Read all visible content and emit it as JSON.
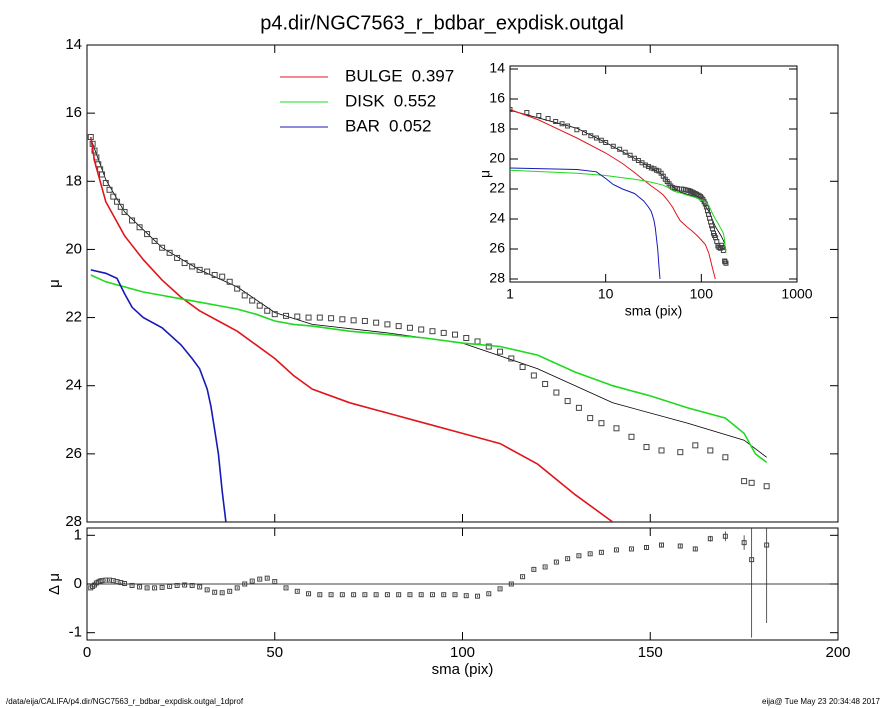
{
  "chart_data": [
    {
      "type": "line",
      "title": "p4.dir/NGC7563_r_bdbar_expdisk.outgal",
      "ylabel": "μ",
      "xlim": [
        0,
        200
      ],
      "xticks": [
        0,
        50,
        100,
        150,
        200
      ],
      "ylim": [
        14,
        28
      ],
      "yticks": [
        14,
        16,
        18,
        20,
        22,
        24,
        26,
        28
      ],
      "y_inverted": true,
      "series": [
        {
          "name": "BULGE",
          "fraction": 0.397,
          "color": "#e0161c",
          "x": [
            1,
            2,
            5,
            10,
            15,
            20,
            25,
            30,
            35,
            40,
            45,
            50,
            55,
            60,
            70,
            80,
            90,
            100,
            110,
            120,
            130,
            140
          ],
          "values": [
            16.7,
            17.4,
            18.6,
            19.6,
            20.3,
            20.9,
            21.4,
            21.8,
            22.1,
            22.4,
            22.8,
            23.2,
            23.7,
            24.1,
            24.5,
            24.8,
            25.1,
            25.4,
            25.7,
            26.3,
            27.2,
            28
          ]
        },
        {
          "name": "DISK",
          "fraction": 0.552,
          "color": "#1fd91f",
          "x": [
            1,
            5,
            10,
            15,
            20,
            25,
            30,
            35,
            40,
            45,
            50,
            55,
            60,
            70,
            80,
            90,
            100,
            110,
            120,
            130,
            140,
            150,
            160,
            170,
            175,
            178,
            181
          ],
          "values": [
            20.75,
            20.95,
            21.1,
            21.25,
            21.35,
            21.45,
            21.55,
            21.65,
            21.75,
            21.9,
            22.1,
            22.2,
            22.25,
            22.4,
            22.5,
            22.6,
            22.75,
            22.85,
            23.1,
            23.6,
            24.0,
            24.3,
            24.65,
            24.95,
            25.4,
            26.0,
            26.25
          ]
        },
        {
          "name": "BAR",
          "fraction": 0.052,
          "color": "#1818b8",
          "x": [
            1,
            5,
            8,
            10,
            12,
            15,
            20,
            25,
            28,
            30,
            32,
            33,
            34,
            35,
            36,
            37
          ],
          "values": [
            20.6,
            20.7,
            20.85,
            21.3,
            21.7,
            22.0,
            22.3,
            22.8,
            23.2,
            23.5,
            24.1,
            24.6,
            25.3,
            26.0,
            27.1,
            28.0
          ]
        }
      ],
      "model": {
        "x": [
          1,
          5,
          10,
          20,
          30,
          40,
          50,
          60,
          80,
          100,
          120,
          140,
          160,
          175,
          181
        ],
        "values": [
          16.75,
          17.95,
          18.9,
          19.95,
          20.6,
          21.1,
          21.85,
          22.2,
          22.45,
          22.75,
          23.5,
          24.5,
          25.1,
          25.6,
          26.1
        ]
      },
      "points": {
        "x": [
          1,
          1.5,
          2,
          2.5,
          3,
          3.5,
          4,
          5,
          6,
          7,
          8,
          9,
          10,
          12,
          14,
          16,
          18,
          20,
          22,
          24,
          26,
          28,
          30,
          32,
          34,
          36,
          38,
          40,
          42,
          44,
          46,
          48,
          50,
          53,
          56,
          59,
          62,
          65,
          68,
          71,
          74,
          77,
          80,
          83,
          86,
          89,
          92,
          95,
          98,
          101,
          104,
          107,
          110,
          113,
          116,
          119,
          122,
          125,
          128,
          131,
          134,
          137,
          141,
          145,
          149,
          153,
          158,
          162,
          166,
          170,
          175,
          177,
          181
        ],
        "values": [
          16.7,
          16.9,
          17.1,
          17.3,
          17.5,
          17.65,
          17.8,
          18.05,
          18.25,
          18.45,
          18.6,
          18.75,
          18.9,
          19.15,
          19.35,
          19.55,
          19.75,
          19.95,
          20.1,
          20.25,
          20.4,
          20.5,
          20.6,
          20.65,
          20.75,
          20.8,
          20.95,
          21.15,
          21.35,
          21.5,
          21.65,
          21.8,
          21.9,
          21.95,
          21.97,
          22.0,
          22.0,
          22.02,
          22.05,
          22.08,
          22.1,
          22.15,
          22.2,
          22.25,
          22.3,
          22.35,
          22.4,
          22.45,
          22.5,
          22.6,
          22.7,
          22.85,
          23.0,
          23.2,
          23.45,
          23.7,
          23.95,
          24.2,
          24.45,
          24.65,
          24.95,
          25.1,
          25.25,
          25.5,
          25.8,
          25.9,
          25.95,
          25.75,
          25.9,
          26.1,
          26.8,
          26.85,
          26.95
        ]
      }
    },
    {
      "type": "scatter",
      "xlabel": "sma (pix)",
      "ylabel": "Δ μ",
      "xlim": [
        0,
        200
      ],
      "xticks": [
        0,
        50,
        100,
        150,
        200
      ],
      "ylim": [
        -1.15,
        1.15
      ],
      "yticks": [
        -1,
        0,
        1
      ],
      "x": [
        1,
        1.5,
        2,
        2.5,
        3,
        3.5,
        4,
        5,
        6,
        7,
        8,
        9,
        10,
        12,
        14,
        16,
        18,
        20,
        22,
        24,
        26,
        28,
        30,
        32,
        34,
        36,
        38,
        40,
        42,
        44,
        46,
        48,
        50,
        53,
        56,
        59,
        62,
        65,
        68,
        71,
        74,
        77,
        80,
        83,
        86,
        89,
        92,
        95,
        98,
        101,
        104,
        107,
        110,
        113,
        116,
        119,
        122,
        125,
        128,
        131,
        134,
        137,
        141,
        145,
        149,
        153,
        158,
        162,
        166,
        170,
        175,
        177,
        181
      ],
      "values": [
        -0.08,
        -0.05,
        -0.02,
        0.02,
        0.04,
        0.06,
        0.07,
        0.08,
        0.08,
        0.07,
        0.05,
        0.03,
        0.01,
        -0.03,
        -0.06,
        -0.08,
        -0.08,
        -0.07,
        -0.05,
        -0.03,
        -0.02,
        -0.03,
        -0.06,
        -0.12,
        -0.17,
        -0.18,
        -0.15,
        -0.08,
        0.0,
        0.06,
        0.1,
        0.12,
        0.05,
        -0.08,
        -0.15,
        -0.2,
        -0.22,
        -0.22,
        -0.22,
        -0.22,
        -0.22,
        -0.22,
        -0.22,
        -0.22,
        -0.22,
        -0.22,
        -0.22,
        -0.22,
        -0.22,
        -0.24,
        -0.25,
        -0.2,
        -0.1,
        0.0,
        0.15,
        0.3,
        0.35,
        0.45,
        0.52,
        0.58,
        0.62,
        0.65,
        0.7,
        0.72,
        0.75,
        0.8,
        0.78,
        0.72,
        0.93,
        0.98,
        0.85,
        0.5,
        0.8
      ],
      "errors": [
        0.02,
        0.02,
        0.02,
        0.02,
        0.02,
        0.02,
        0.02,
        0.02,
        0.02,
        0.02,
        0.02,
        0.02,
        0.02,
        0.02,
        0.02,
        0.02,
        0.02,
        0.02,
        0.02,
        0.02,
        0.02,
        0.02,
        0.02,
        0.02,
        0.02,
        0.02,
        0.02,
        0.02,
        0.02,
        0.02,
        0.02,
        0.02,
        0.02,
        0.02,
        0.02,
        0.02,
        0.02,
        0.02,
        0.02,
        0.02,
        0.02,
        0.02,
        0.02,
        0.02,
        0.02,
        0.02,
        0.02,
        0.02,
        0.02,
        0.02,
        0.02,
        0.02,
        0.02,
        0.02,
        0.02,
        0.02,
        0.02,
        0.02,
        0.02,
        0.02,
        0.02,
        0.02,
        0.02,
        0.02,
        0.03,
        0.03,
        0.03,
        0.04,
        0.06,
        0.1,
        0.15,
        1.6,
        1.6
      ]
    },
    {
      "type": "line",
      "xlabel": "sma (pix)",
      "ylabel": "μ",
      "log_x": true,
      "xlim": [
        1,
        1000
      ],
      "xticks": [
        1,
        10,
        100,
        1000
      ],
      "ylim": [
        13.8,
        28.2
      ],
      "yticks": [
        14,
        16,
        18,
        20,
        22,
        24,
        26,
        28
      ],
      "y_inverted": true
    }
  ],
  "footer": {
    "path": "/data/eija/CALIFA/p4.dir/NGC7563_r_bdbar_expdisk.outgal_1dprof",
    "stamp": "eija@  Tue May 23 20:34:48 2017"
  }
}
